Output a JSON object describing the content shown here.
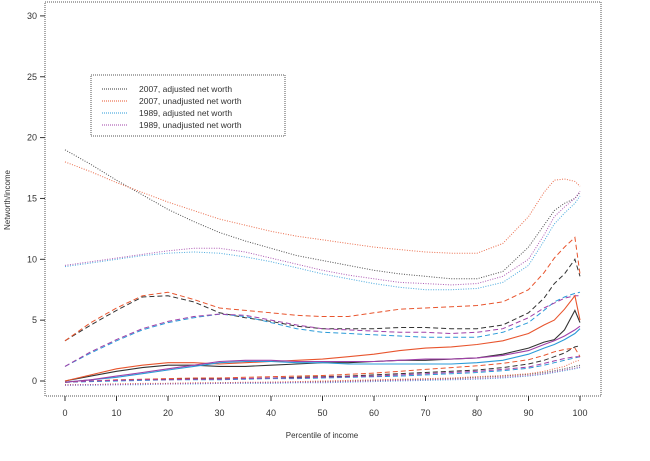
{
  "chart_data": {
    "type": "line",
    "title": "",
    "xlabel": "Percentile of income",
    "ylabel": "Networth/income",
    "xlim": [
      -3,
      103
    ],
    "ylim": [
      -1,
      31
    ],
    "xticks": [
      0,
      10,
      20,
      30,
      40,
      50,
      60,
      70,
      80,
      90,
      100
    ],
    "yticks": [
      0,
      5,
      10,
      15,
      20,
      25,
      30
    ],
    "grid": false,
    "legend_position": "top-left",
    "legend": [
      {
        "label": "2007, adjusted net worth",
        "color": "#333333"
      },
      {
        "label": "2007, unadjusted net worth",
        "color": "#e8552e"
      },
      {
        "label": "1989, adjusted net worth",
        "color": "#2b9bd8"
      },
      {
        "label": "1989, unadjusted net worth",
        "color": "#a040a8"
      }
    ],
    "x": [
      0,
      5,
      10,
      15,
      20,
      25,
      30,
      35,
      40,
      45,
      50,
      55,
      60,
      65,
      70,
      75,
      80,
      85,
      90,
      93,
      95,
      97,
      99,
      100
    ],
    "series": [
      {
        "name": "2007, adjusted net worth",
        "style": "dotted",
        "color": "#333333",
        "values": [
          19.0,
          17.8,
          16.5,
          15.3,
          14.1,
          13.1,
          12.2,
          11.5,
          10.9,
          10.3,
          9.9,
          9.5,
          9.1,
          8.8,
          8.6,
          8.4,
          8.4,
          9.0,
          11.0,
          12.8,
          14.0,
          14.6,
          15.0,
          15.5
        ]
      },
      {
        "name": "2007, unadjusted net worth",
        "style": "dotted",
        "color": "#e8552e",
        "values": [
          18.0,
          17.2,
          16.3,
          15.5,
          14.7,
          14.0,
          13.3,
          12.8,
          12.3,
          11.9,
          11.6,
          11.3,
          11.0,
          10.8,
          10.6,
          10.5,
          10.5,
          11.3,
          13.5,
          15.5,
          16.5,
          16.6,
          16.4,
          16.0
        ]
      },
      {
        "name": "1989, adjusted net worth",
        "style": "dotted",
        "color": "#2b9bd8",
        "values": [
          9.4,
          9.7,
          10.0,
          10.3,
          10.5,
          10.6,
          10.5,
          10.2,
          9.8,
          9.3,
          8.8,
          8.4,
          8.0,
          7.7,
          7.5,
          7.5,
          7.6,
          8.1,
          9.5,
          11.5,
          12.9,
          13.8,
          14.6,
          15.2
        ]
      },
      {
        "name": "1989, unadjusted net worth",
        "style": "dotted",
        "color": "#a040a8",
        "values": [
          9.5,
          9.8,
          10.1,
          10.4,
          10.7,
          10.9,
          10.9,
          10.6,
          10.1,
          9.6,
          9.1,
          8.7,
          8.4,
          8.1,
          8.0,
          7.9,
          8.0,
          8.6,
          10.0,
          12.0,
          13.5,
          14.3,
          15.0,
          15.6
        ]
      },
      {
        "name": "2007, adjusted net worth (dashed)",
        "style": "dashed",
        "color": "#333333",
        "values": [
          3.3,
          4.6,
          5.8,
          6.9,
          7.0,
          6.5,
          5.6,
          5.2,
          4.9,
          4.5,
          4.3,
          4.3,
          4.3,
          4.4,
          4.4,
          4.3,
          4.3,
          4.6,
          5.6,
          6.8,
          8.0,
          8.8,
          10.0,
          8.6
        ]
      },
      {
        "name": "2007, unadjusted net worth (dashed)",
        "style": "dashed",
        "color": "#e8552e",
        "values": [
          3.3,
          4.8,
          6.0,
          7.0,
          7.3,
          6.7,
          6.0,
          5.8,
          5.6,
          5.4,
          5.3,
          5.3,
          5.6,
          5.9,
          6.0,
          6.1,
          6.2,
          6.5,
          7.5,
          8.9,
          10.1,
          11.0,
          11.8,
          8.8
        ]
      },
      {
        "name": "1989, adjusted net worth (dashed)",
        "style": "dashed",
        "color": "#2b9bd8",
        "values": [
          1.2,
          2.3,
          3.3,
          4.2,
          4.8,
          5.2,
          5.5,
          5.3,
          4.8,
          4.3,
          4.0,
          3.9,
          3.8,
          3.7,
          3.6,
          3.6,
          3.6,
          4.0,
          4.8,
          5.8,
          6.5,
          6.9,
          7.2,
          7.3
        ]
      },
      {
        "name": "1989, unadjusted net worth (dashed)",
        "style": "dashed",
        "color": "#a040a8",
        "values": [
          1.2,
          2.4,
          3.4,
          4.3,
          4.9,
          5.3,
          5.5,
          5.4,
          5.0,
          4.6,
          4.3,
          4.2,
          4.1,
          4.0,
          4.0,
          3.9,
          4.0,
          4.3,
          5.2,
          6.0,
          6.4,
          6.8,
          7.0,
          7.0
        ]
      },
      {
        "name": "2007, adjusted net worth (solid)",
        "style": "solid",
        "color": "#333333",
        "values": [
          0.0,
          0.4,
          0.8,
          1.1,
          1.3,
          1.3,
          1.2,
          1.2,
          1.3,
          1.4,
          1.5,
          1.5,
          1.6,
          1.7,
          1.7,
          1.8,
          1.9,
          2.2,
          2.7,
          3.2,
          3.4,
          4.2,
          5.8,
          4.8
        ]
      },
      {
        "name": "2007, unadjusted net worth (solid)",
        "style": "solid",
        "color": "#e8552e",
        "values": [
          0.0,
          0.5,
          1.0,
          1.3,
          1.5,
          1.5,
          1.4,
          1.5,
          1.6,
          1.7,
          1.8,
          2.0,
          2.2,
          2.5,
          2.7,
          2.8,
          3.0,
          3.3,
          3.9,
          4.6,
          5.0,
          5.9,
          7.0,
          5.0
        ]
      },
      {
        "name": "1989, adjusted net worth (solid)",
        "style": "solid",
        "color": "#2b9bd8",
        "values": [
          -0.1,
          0.1,
          0.3,
          0.6,
          0.9,
          1.2,
          1.5,
          1.6,
          1.6,
          1.5,
          1.5,
          1.4,
          1.4,
          1.4,
          1.4,
          1.4,
          1.5,
          1.7,
          2.2,
          2.7,
          3.0,
          3.4,
          3.9,
          4.3
        ]
      },
      {
        "name": "1989, unadjusted net worth (solid)",
        "style": "solid",
        "color": "#a040a8",
        "values": [
          -0.1,
          0.1,
          0.4,
          0.7,
          1.0,
          1.3,
          1.6,
          1.7,
          1.7,
          1.6,
          1.6,
          1.6,
          1.6,
          1.7,
          1.8,
          1.8,
          1.9,
          2.1,
          2.5,
          3.0,
          3.3,
          3.7,
          4.2,
          4.5
        ]
      },
      {
        "name": "2007, adjusted net worth (low dashed)",
        "style": "dashed",
        "color": "#333333",
        "values": [
          -0.1,
          0.0,
          0.05,
          0.1,
          0.15,
          0.2,
          0.2,
          0.2,
          0.25,
          0.3,
          0.35,
          0.4,
          0.5,
          0.6,
          0.7,
          0.8,
          0.9,
          1.1,
          1.4,
          1.7,
          2.0,
          2.3,
          2.8,
          2.9
        ]
      },
      {
        "name": "2007, unadjusted net worth (low dashed)",
        "style": "dashed",
        "color": "#e8552e",
        "values": [
          -0.1,
          0.0,
          0.1,
          0.15,
          0.2,
          0.25,
          0.25,
          0.3,
          0.35,
          0.4,
          0.45,
          0.55,
          0.65,
          0.8,
          0.95,
          1.1,
          1.25,
          1.45,
          1.75,
          2.1,
          2.4,
          2.6,
          2.7,
          2.0
        ]
      },
      {
        "name": "1989, adjusted net worth (low dashed)",
        "style": "dashed",
        "color": "#2b9bd8",
        "values": [
          -0.1,
          -0.05,
          0.0,
          0.05,
          0.1,
          0.1,
          0.1,
          0.15,
          0.2,
          0.2,
          0.25,
          0.3,
          0.35,
          0.4,
          0.5,
          0.6,
          0.7,
          0.85,
          1.05,
          1.3,
          1.5,
          1.7,
          1.9,
          2.0
        ]
      },
      {
        "name": "1989, unadjusted net worth (low dashed)",
        "style": "dashed",
        "color": "#a040a8",
        "values": [
          -0.1,
          0.0,
          0.05,
          0.1,
          0.1,
          0.15,
          0.15,
          0.2,
          0.25,
          0.25,
          0.3,
          0.35,
          0.4,
          0.5,
          0.6,
          0.7,
          0.8,
          0.95,
          1.15,
          1.45,
          1.65,
          1.85,
          2.0,
          2.0
        ]
      },
      {
        "name": "2007, adjusted net worth (low dotted)",
        "style": "dotted",
        "color": "#333333",
        "values": [
          -0.3,
          -0.3,
          -0.25,
          -0.25,
          -0.2,
          -0.2,
          -0.15,
          -0.15,
          -0.1,
          -0.1,
          -0.05,
          0.0,
          0.05,
          0.1,
          0.15,
          0.2,
          0.3,
          0.4,
          0.55,
          0.7,
          0.85,
          1.0,
          1.2,
          1.3
        ]
      },
      {
        "name": "2007, unadjusted net worth (low dotted)",
        "style": "dotted",
        "color": "#e8552e",
        "values": [
          -0.3,
          -0.3,
          -0.25,
          -0.2,
          -0.2,
          -0.15,
          -0.15,
          -0.1,
          -0.1,
          -0.05,
          0.0,
          0.05,
          0.1,
          0.15,
          0.2,
          0.25,
          0.35,
          0.45,
          0.6,
          0.8,
          1.0,
          1.2,
          1.6,
          1.7
        ]
      },
      {
        "name": "1989, adjusted net worth (low dotted)",
        "style": "dotted",
        "color": "#2b9bd8",
        "values": [
          -0.35,
          -0.35,
          -0.3,
          -0.3,
          -0.25,
          -0.25,
          -0.2,
          -0.2,
          -0.2,
          -0.15,
          -0.15,
          -0.1,
          -0.05,
          0.0,
          0.05,
          0.1,
          0.15,
          0.25,
          0.4,
          0.55,
          0.7,
          0.85,
          1.0,
          1.1
        ]
      },
      {
        "name": "1989, unadjusted net worth (low dotted)",
        "style": "dotted",
        "color": "#a040a8",
        "values": [
          -0.35,
          -0.3,
          -0.3,
          -0.25,
          -0.25,
          -0.2,
          -0.2,
          -0.15,
          -0.15,
          -0.1,
          -0.1,
          -0.05,
          0.0,
          0.05,
          0.1,
          0.15,
          0.2,
          0.3,
          0.45,
          0.6,
          0.75,
          0.9,
          1.05,
          1.15
        ]
      }
    ]
  }
}
